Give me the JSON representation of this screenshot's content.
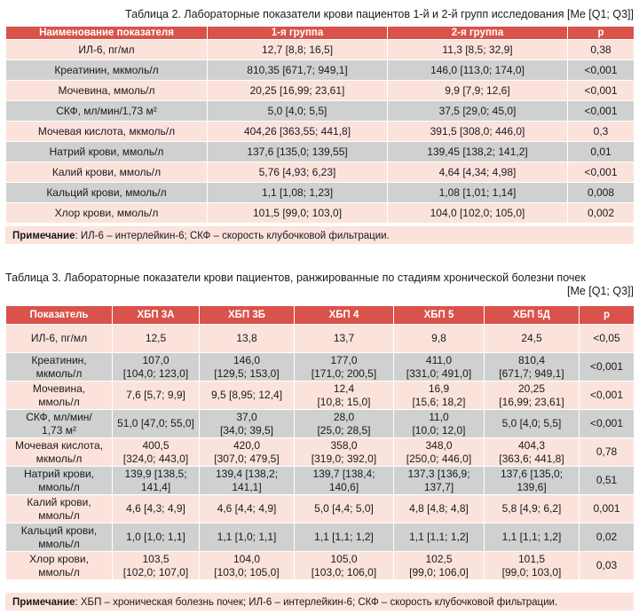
{
  "table2": {
    "caption": "Таблица 2. Лабораторные показатели крови пациентов 1-й и 2-й групп исследования [Me [Q1; Q3]]",
    "headers": [
      "Наименование показателя",
      "1-я группа",
      "2-я группа",
      "p"
    ],
    "rows": [
      [
        "ИЛ-6, пг/мл",
        "12,7 [8,8; 16,5]",
        "11,3 [8,5; 32,9]",
        "0,38"
      ],
      [
        "Креатинин, мкмоль/л",
        "810,35 [671,7; 949,1]",
        "146,0 [113,0; 174,0]",
        "<0,001"
      ],
      [
        "Мочевина, ммоль/л",
        "20,25 [16,99; 23,61]",
        "9,9 [7,9; 12,6]",
        "<0,001"
      ],
      [
        "СКФ, мл/мин/1,73 м²",
        "5,0 [4,0; 5,5]",
        "37,5 [29,0; 45,0]",
        "<0,001"
      ],
      [
        "Мочевая кислота, мкмоль/л",
        "404,26 [363,55; 441,8]",
        "391,5 [308,0; 446,0]",
        "0,3"
      ],
      [
        "Натрий крови, ммоль/л",
        "137,6 [135,0; 139,55]",
        "139,45 [138,2; 141,2]",
        "0,01"
      ],
      [
        "Калий крови, ммоль/л",
        "5,76 [4,93; 6,23]",
        "4,64 [4,34; 4,98]",
        "<0,001"
      ],
      [
        "Кальций крови, ммоль/л",
        "1,1 [1,08; 1,23]",
        "1,08 [1,01; 1,14]",
        "0,008"
      ],
      [
        "Хлор крови, ммоль/л",
        "101,5 [99,0; 103,0]",
        "104,0 [102,0; 105,0]",
        "0,002"
      ]
    ],
    "note_label": "Примечание",
    "note_text": ": ИЛ-6 – интерлейкин-6; СКФ – скорость клубочковой фильтрации."
  },
  "table3": {
    "caption_line1": "Таблица 3. Лабораторные показатели крови пациентов, ранжированные по стадиям хронической болезни почек",
    "caption_line2": "[Me [Q1; Q3]]",
    "headers": [
      "Показатель",
      "ХБП 3А",
      "ХБП 3Б",
      "ХБП 4",
      "ХБП 5",
      "ХБП 5Д",
      "р"
    ],
    "rows": [
      [
        [
          "ИЛ-6, пг/мл"
        ],
        [
          "12,5"
        ],
        [
          "13,8"
        ],
        [
          "13,7"
        ],
        [
          "9,8"
        ],
        [
          "24,5"
        ],
        [
          "<0,05"
        ]
      ],
      [
        [
          "Креатинин,",
          "мкмоль/л"
        ],
        [
          "107,0",
          "[104,0; 123,0]"
        ],
        [
          "146,0",
          "[129,5; 153,0]"
        ],
        [
          "177,0",
          "[171,0; 200,5]"
        ],
        [
          "411,0",
          "[331,0; 491,0]"
        ],
        [
          "810,4",
          "[671,7; 949,1]"
        ],
        [
          "<0,001"
        ]
      ],
      [
        [
          "Мочевина,",
          "ммоль/л"
        ],
        [
          "7,6  [5,7; 9,9]"
        ],
        [
          "9,5 [8,95; 12,4]"
        ],
        [
          "12,4",
          "[10,8; 15,0]"
        ],
        [
          "16,9",
          "[15,6; 18,2]"
        ],
        [
          "20,25",
          "[16,99; 23,61]"
        ],
        [
          "<0,001"
        ]
      ],
      [
        [
          "СКФ, мл/мин/",
          "1,73 м²"
        ],
        [
          "51,0 [47,0; 55,0]"
        ],
        [
          "37,0",
          "[34,0; 39,5]"
        ],
        [
          "28,0",
          "[25,0; 28,5]"
        ],
        [
          "11,0",
          "[10,0; 12,0]"
        ],
        [
          "5,0 [4,0; 5,5]"
        ],
        [
          "<0,001"
        ]
      ],
      [
        [
          "Мочевая кислота,",
          "мкмоль/л"
        ],
        [
          "400,5",
          "[324,0; 443,0]"
        ],
        [
          "420,0",
          "[307,0; 479,5]"
        ],
        [
          "358,0",
          "[319,0; 392,0]"
        ],
        [
          "348,0",
          "[250,0; 446,0]"
        ],
        [
          "404,3",
          "[363,6; 441,8]"
        ],
        [
          "0,78"
        ]
      ],
      [
        [
          "Натрий крови,",
          "ммоль/л"
        ],
        [
          "139,9 [138,5;",
          "141,4]"
        ],
        [
          "139,4 [138,2;",
          "141,1]"
        ],
        [
          "139,7 [138,4;",
          "140,6]"
        ],
        [
          "137,3 [136,9;",
          "137,7]"
        ],
        [
          "137,6 [135,0;",
          "139,6]"
        ],
        [
          "0,51"
        ]
      ],
      [
        [
          "Калий крови,",
          "ммоль/л"
        ],
        [
          "4,6 [4,3; 4,9]"
        ],
        [
          "4,6 [4,4; 4,9]"
        ],
        [
          "5,0 [4,4; 5,0]"
        ],
        [
          "4,8 [4,8; 4,8]"
        ],
        [
          "5,8 [4,9; 6,2]"
        ],
        [
          "0,001"
        ]
      ],
      [
        [
          "Кальций крови,",
          "ммоль/л"
        ],
        [
          "1,0 [1,0; 1,1]"
        ],
        [
          "1,1 [1,0; 1,1]"
        ],
        [
          "1,1 [1,1; 1,2]"
        ],
        [
          "1,1 [1,1; 1,2]"
        ],
        [
          "1,1 [1,1; 1,2]"
        ],
        [
          "0,02"
        ]
      ],
      [
        [
          "Хлор крови,",
          "ммоль/л"
        ],
        [
          "103,5",
          "[102,0; 107,0]"
        ],
        [
          "104,0",
          "[103,0; 105,0]"
        ],
        [
          "105,0",
          "[103,0; 106,0]"
        ],
        [
          "102,5",
          "[99,0; 106,0]"
        ],
        [
          "101,5",
          "[99,0; 103,0]"
        ],
        [
          "0,03"
        ]
      ]
    ],
    "note_label": "Примечание",
    "note_text": ": ХБП – хроническая болезнь почек; ИЛ-6 – интерлейкин-6; СКФ – скорость клубочковой фильтрации."
  },
  "colors": {
    "header_bg": "#d9534a",
    "row_pink": "#fbe3dc",
    "row_gray": "#cfd0d0"
  }
}
